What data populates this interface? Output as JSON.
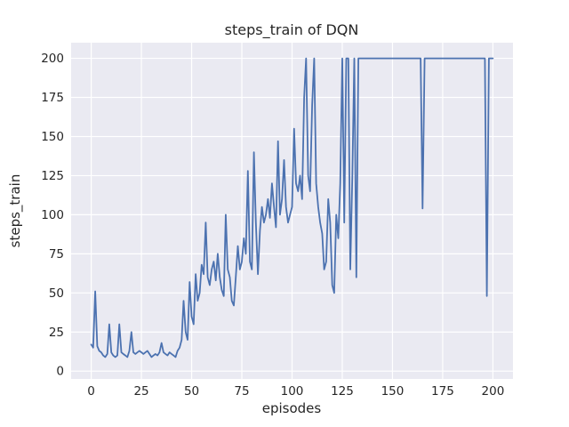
{
  "chart_data": {
    "type": "line",
    "title": "steps_train of DQN",
    "xlabel": "episodes",
    "ylabel": "steps_train",
    "xlim": [
      -10,
      210
    ],
    "ylim": [
      -5,
      210
    ],
    "xticks": [
      0,
      25,
      50,
      75,
      100,
      125,
      150,
      175,
      200
    ],
    "yticks": [
      0,
      25,
      50,
      75,
      100,
      125,
      150,
      175,
      200
    ],
    "grid": true,
    "legend_position": "none",
    "line_color": "#4C72B0",
    "plot_background": "#EAEAF2",
    "grid_color": "#FFFFFF",
    "text_color": "#262626",
    "x_start": 0,
    "x_step": 1,
    "values": [
      17,
      15,
      51,
      16,
      13,
      12,
      10,
      9,
      11,
      30,
      12,
      10,
      9,
      10,
      30,
      12,
      11,
      10,
      9,
      13,
      25,
      12,
      11,
      12,
      13,
      12,
      11,
      12,
      13,
      11,
      9,
      10,
      11,
      10,
      12,
      18,
      12,
      11,
      10,
      12,
      11,
      10,
      9,
      13,
      15,
      20,
      45,
      25,
      20,
      57,
      35,
      30,
      62,
      45,
      50,
      68,
      62,
      95,
      60,
      55,
      65,
      70,
      58,
      75,
      60,
      52,
      48,
      100,
      65,
      60,
      45,
      42,
      60,
      80,
      65,
      70,
      85,
      75,
      128,
      70,
      65,
      140,
      95,
      62,
      90,
      105,
      95,
      100,
      110,
      98,
      120,
      105,
      92,
      147,
      100,
      110,
      135,
      105,
      95,
      100,
      105,
      155,
      120,
      115,
      125,
      110,
      175,
      200,
      125,
      115,
      170,
      200,
      120,
      105,
      95,
      88,
      65,
      70,
      110,
      95,
      55,
      50,
      100,
      85,
      120,
      200,
      95,
      200,
      200,
      65,
      125,
      200,
      60,
      200,
      200,
      200,
      200,
      200,
      200,
      200,
      200,
      200,
      200,
      200,
      200,
      200,
      200,
      200,
      200,
      200,
      200,
      200,
      200,
      200,
      200,
      200,
      200,
      200,
      200,
      200,
      200,
      200,
      200,
      200,
      200,
      104,
      200,
      200,
      200,
      200,
      200,
      200,
      200,
      200,
      200,
      200,
      200,
      200,
      200,
      200,
      200,
      200,
      200,
      200,
      200,
      200,
      200,
      200,
      200,
      200,
      200,
      200,
      200,
      200,
      200,
      200,
      200,
      48,
      200,
      200,
      200
    ]
  }
}
